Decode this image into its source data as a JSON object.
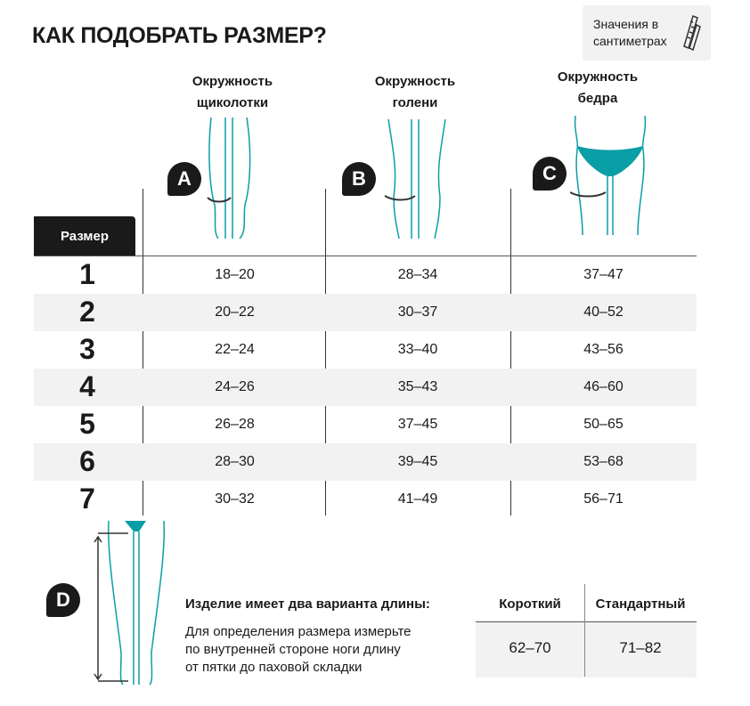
{
  "title": "КАК ПОДОБРАТЬ РАЗМЕР?",
  "units_note": {
    "line1": "Значения в",
    "line2": "сантиметрах",
    "icon": "measuring-tape-icon"
  },
  "accent_color": "#0a9ea6",
  "columns": [
    {
      "badge": "A",
      "line1": "Окружность",
      "line2": "щиколотки"
    },
    {
      "badge": "B",
      "line1": "Окружность",
      "line2": "голени"
    },
    {
      "badge": "C",
      "line1": "Окружность",
      "line2": "бедра"
    }
  ],
  "size_label": "Размер",
  "rows": [
    {
      "size": "1",
      "a": "18–20",
      "b": "28–34",
      "c": "37–47"
    },
    {
      "size": "2",
      "a": "20–22",
      "b": "30–37",
      "c": "40–52"
    },
    {
      "size": "3",
      "a": "22–24",
      "b": "33–40",
      "c": "43–56"
    },
    {
      "size": "4",
      "a": "24–26",
      "b": "35–43",
      "c": "46–60"
    },
    {
      "size": "5",
      "a": "26–28",
      "b": "37–45",
      "c": "50–65"
    },
    {
      "size": "6",
      "a": "28–30",
      "b": "39–45",
      "c": "53–68"
    },
    {
      "size": "7",
      "a": "30–32",
      "b": "41–49",
      "c": "56–71"
    }
  ],
  "length": {
    "badge": "D",
    "heading": "Изделие имеет два варианта длины:",
    "desc": [
      "Для определения размера измерьте",
      "по внутренней стороне ноги длину",
      "от пятки до паховой складки"
    ],
    "short_label": "Короткий",
    "short_value": "62–70",
    "standard_label": "Стандартный",
    "standard_value": "71–82"
  }
}
